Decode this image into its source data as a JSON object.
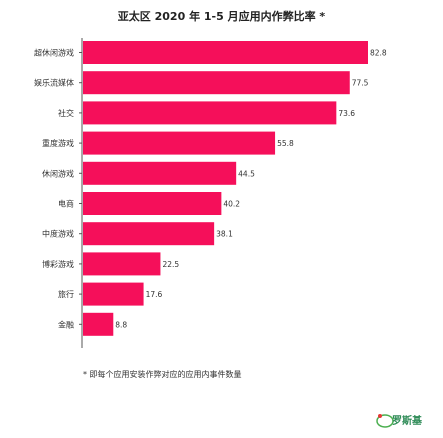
{
  "chart_data": {
    "type": "bar",
    "orientation": "horizontal",
    "title": "亚太区 2020 年 1-5 月应用内作弊比率 *",
    "categories": [
      "超休闲游戏",
      "娱乐流媒体",
      "社交",
      "重度游戏",
      "休闲游戏",
      "电商",
      "中度游戏",
      "博彩游戏",
      "旅行",
      "金融"
    ],
    "values": [
      82.8,
      77.5,
      73.6,
      55.8,
      44.5,
      40.2,
      38.1,
      22.5,
      17.6,
      8.8
    ],
    "xlim": [
      0,
      90
    ],
    "grid": false,
    "legend": "none",
    "bar_color": "#f50f5a"
  },
  "footnote": "* 即每个应用安装作弊对应的应用内事件数量",
  "watermark": {
    "text": "罗斯基",
    "logo_text": "SiRO"
  }
}
